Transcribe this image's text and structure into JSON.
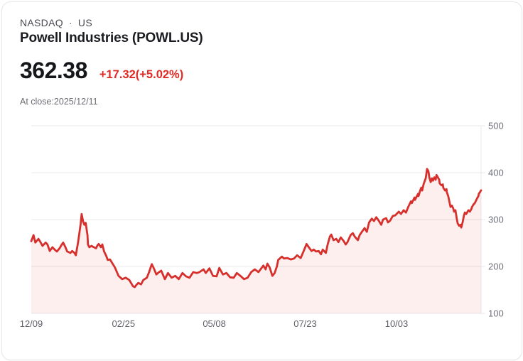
{
  "header": {
    "exchange": "NASDAQ",
    "separator": "·",
    "country": "US",
    "title": "Powell Industries (POWL.US)"
  },
  "quote": {
    "price": "362.38",
    "change": "+17.32(+5.02%)",
    "as_of": "At close:2025/12/11"
  },
  "colors": {
    "accent_red": "#d7302c",
    "price_text": "#16171a",
    "muted_text": "#6b6c72",
    "card_border": "#e7e8ec"
  },
  "chart_data": {
    "type": "area",
    "title": "Powell Industries (POWL.US) 1-year price",
    "xlabel": "",
    "ylabel": "",
    "ylim": [
      100,
      500
    ],
    "grid": "horizontal",
    "legend": "none",
    "line_color": "#d7302c",
    "area_color": "rgba(216,48,44,0.08)",
    "grid_color": "#e9e9ec",
    "y_label_color": "#70717a",
    "x_label_color": "#5f6067",
    "y_ticks": [
      {
        "label": "500",
        "value": 500
      },
      {
        "label": "400",
        "value": 400
      },
      {
        "label": "300",
        "value": 300
      },
      {
        "label": "200",
        "value": 200
      },
      {
        "label": "100",
        "value": 100
      }
    ],
    "x_ticks": [
      {
        "label": "12/09",
        "f": 0.0
      },
      {
        "label": "02/25",
        "f": 0.205
      },
      {
        "label": "05/08",
        "f": 0.407
      },
      {
        "label": "07/23",
        "f": 0.609
      },
      {
        "label": "10/03",
        "f": 0.812
      }
    ],
    "points": [
      [
        0,
        254
      ],
      [
        0.005,
        267
      ],
      [
        0.009,
        251
      ],
      [
        0.016,
        259
      ],
      [
        0.021,
        251
      ],
      [
        0.025,
        244
      ],
      [
        0.032,
        251
      ],
      [
        0.036,
        247
      ],
      [
        0.041,
        233
      ],
      [
        0.047,
        241
      ],
      [
        0.052,
        236
      ],
      [
        0.057,
        232
      ],
      [
        0.063,
        239
      ],
      [
        0.068,
        247
      ],
      [
        0.071,
        251
      ],
      [
        0.076,
        241
      ],
      [
        0.08,
        232
      ],
      [
        0.087,
        229
      ],
      [
        0.091,
        233
      ],
      [
        0.096,
        229
      ],
      [
        0.099,
        224
      ],
      [
        0.104,
        251
      ],
      [
        0.107,
        271
      ],
      [
        0.11,
        292
      ],
      [
        0.112,
        312
      ],
      [
        0.115,
        297
      ],
      [
        0.118,
        289
      ],
      [
        0.121,
        293
      ],
      [
        0.125,
        267
      ],
      [
        0.126,
        247
      ],
      [
        0.129,
        241
      ],
      [
        0.134,
        244
      ],
      [
        0.139,
        241
      ],
      [
        0.144,
        239
      ],
      [
        0.147,
        245
      ],
      [
        0.15,
        248
      ],
      [
        0.155,
        241
      ],
      [
        0.158,
        247
      ],
      [
        0.162,
        232
      ],
      [
        0.167,
        222
      ],
      [
        0.17,
        214
      ],
      [
        0.175,
        215
      ],
      [
        0.186,
        198
      ],
      [
        0.194,
        180
      ],
      [
        0.202,
        173
      ],
      [
        0.21,
        176
      ],
      [
        0.218,
        171
      ],
      [
        0.226,
        158
      ],
      [
        0.23,
        156
      ],
      [
        0.233,
        160
      ],
      [
        0.238,
        165
      ],
      [
        0.244,
        162
      ],
      [
        0.249,
        171
      ],
      [
        0.257,
        176
      ],
      [
        0.262,
        188
      ],
      [
        0.268,
        205
      ],
      [
        0.273,
        195
      ],
      [
        0.278,
        183
      ],
      [
        0.284,
        188
      ],
      [
        0.289,
        191
      ],
      [
        0.297,
        173
      ],
      [
        0.304,
        186
      ],
      [
        0.312,
        176
      ],
      [
        0.32,
        180
      ],
      [
        0.328,
        173
      ],
      [
        0.336,
        186
      ],
      [
        0.344,
        179
      ],
      [
        0.352,
        176
      ],
      [
        0.36,
        188
      ],
      [
        0.368,
        186
      ],
      [
        0.374,
        188
      ],
      [
        0.383,
        194
      ],
      [
        0.388,
        186
      ],
      [
        0.396,
        196
      ],
      [
        0.404,
        180
      ],
      [
        0.412,
        179
      ],
      [
        0.418,
        197
      ],
      [
        0.426,
        183
      ],
      [
        0.434,
        186
      ],
      [
        0.442,
        177
      ],
      [
        0.45,
        176
      ],
      [
        0.457,
        186
      ],
      [
        0.465,
        180
      ],
      [
        0.473,
        173
      ],
      [
        0.481,
        176
      ],
      [
        0.489,
        188
      ],
      [
        0.497,
        194
      ],
      [
        0.505,
        188
      ],
      [
        0.513,
        198
      ],
      [
        0.516,
        202
      ],
      [
        0.521,
        194
      ],
      [
        0.525,
        206
      ],
      [
        0.53,
        198
      ],
      [
        0.536,
        180
      ],
      [
        0.541,
        186
      ],
      [
        0.546,
        200
      ],
      [
        0.549,
        214
      ],
      [
        0.557,
        221
      ],
      [
        0.562,
        217
      ],
      [
        0.569,
        218
      ],
      [
        0.577,
        215
      ],
      [
        0.584,
        217
      ],
      [
        0.591,
        224
      ],
      [
        0.599,
        218
      ],
      [
        0.607,
        236
      ],
      [
        0.612,
        248
      ],
      [
        0.617,
        241
      ],
      [
        0.623,
        233
      ],
      [
        0.628,
        236
      ],
      [
        0.633,
        232
      ],
      [
        0.639,
        233
      ],
      [
        0.644,
        226
      ],
      [
        0.648,
        236
      ],
      [
        0.655,
        229
      ],
      [
        0.659,
        247
      ],
      [
        0.664,
        264
      ],
      [
        0.667,
        268
      ],
      [
        0.672,
        256
      ],
      [
        0.678,
        259
      ],
      [
        0.683,
        252
      ],
      [
        0.688,
        262
      ],
      [
        0.694,
        255
      ],
      [
        0.699,
        247
      ],
      [
        0.703,
        252
      ],
      [
        0.71,
        267
      ],
      [
        0.715,
        271
      ],
      [
        0.719,
        264
      ],
      [
        0.726,
        256
      ],
      [
        0.73,
        267
      ],
      [
        0.735,
        274
      ],
      [
        0.741,
        282
      ],
      [
        0.746,
        274
      ],
      [
        0.751,
        294
      ],
      [
        0.757,
        302
      ],
      [
        0.762,
        297
      ],
      [
        0.767,
        305
      ],
      [
        0.773,
        297
      ],
      [
        0.778,
        289
      ],
      [
        0.782,
        300
      ],
      [
        0.789,
        303
      ],
      [
        0.793,
        294
      ],
      [
        0.798,
        298
      ],
      [
        0.804,
        308
      ],
      [
        0.809,
        309
      ],
      [
        0.817,
        317
      ],
      [
        0.822,
        312
      ],
      [
        0.828,
        320
      ],
      [
        0.833,
        315
      ],
      [
        0.838,
        327
      ],
      [
        0.844,
        339
      ],
      [
        0.846,
        335
      ],
      [
        0.852,
        347
      ],
      [
        0.853,
        342
      ],
      [
        0.86,
        355
      ],
      [
        0.861,
        350
      ],
      [
        0.864,
        360
      ],
      [
        0.867,
        368
      ],
      [
        0.869,
        362
      ],
      [
        0.872,
        375
      ],
      [
        0.875,
        383
      ],
      [
        0.877,
        388
      ],
      [
        0.88,
        408
      ],
      [
        0.883,
        403
      ],
      [
        0.885,
        390
      ],
      [
        0.888,
        380
      ],
      [
        0.891,
        388
      ],
      [
        0.893,
        383
      ],
      [
        0.896,
        390
      ],
      [
        0.899,
        385
      ],
      [
        0.901,
        395
      ],
      [
        0.904,
        390
      ],
      [
        0.907,
        385
      ],
      [
        0.908,
        377
      ],
      [
        0.912,
        373
      ],
      [
        0.915,
        375
      ],
      [
        0.916,
        368
      ],
      [
        0.92,
        362
      ],
      [
        0.923,
        365
      ],
      [
        0.924,
        358
      ],
      [
        0.927,
        350
      ],
      [
        0.931,
        332
      ],
      [
        0.932,
        327
      ],
      [
        0.935,
        330
      ],
      [
        0.938,
        324
      ],
      [
        0.94,
        317
      ],
      [
        0.943,
        320
      ],
      [
        0.946,
        302
      ],
      [
        0.948,
        292
      ],
      [
        0.951,
        287
      ],
      [
        0.954,
        289
      ],
      [
        0.956,
        283
      ],
      [
        0.959,
        294
      ],
      [
        0.962,
        309
      ],
      [
        0.964,
        315
      ],
      [
        0.967,
        312
      ],
      [
        0.97,
        317
      ],
      [
        0.972,
        320
      ],
      [
        0.975,
        317
      ],
      [
        0.978,
        322
      ],
      [
        0.98,
        327
      ],
      [
        0.983,
        332
      ],
      [
        0.986,
        335
      ],
      [
        0.988,
        339
      ],
      [
        0.991,
        345
      ],
      [
        0.994,
        350
      ],
      [
        0.995,
        355
      ],
      [
        0.998,
        359
      ],
      [
        1,
        362.38
      ]
    ]
  }
}
